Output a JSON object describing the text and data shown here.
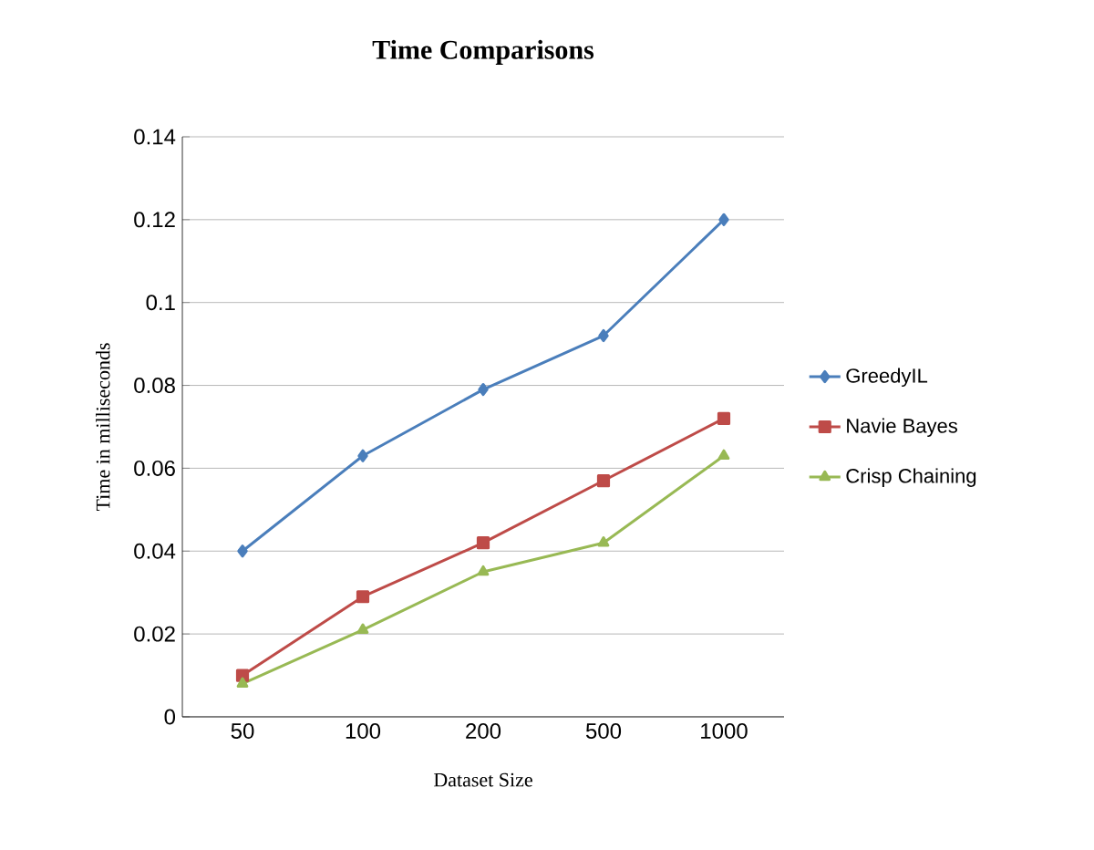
{
  "chart_data": {
    "type": "line",
    "title": "Time Comparisons",
    "xlabel": "Dataset Size",
    "ylabel": "Time  in milliseconds",
    "categories": [
      "50",
      "100",
      "200",
      "500",
      "1000"
    ],
    "series": [
      {
        "name": "GreedyIL",
        "color": "#4a7ebb",
        "marker": "diamond",
        "values": [
          0.04,
          0.063,
          0.079,
          0.092,
          0.12
        ]
      },
      {
        "name": "Navie Bayes",
        "color": "#be4b48",
        "marker": "square",
        "values": [
          0.01,
          0.029,
          0.042,
          0.057,
          0.072
        ]
      },
      {
        "name": "Crisp Chaining",
        "color": "#98b954",
        "marker": "triangle",
        "values": [
          0.008,
          0.021,
          0.035,
          0.042,
          0.063
        ]
      }
    ],
    "ylim": [
      0,
      0.14
    ],
    "yticks": [
      0,
      0.02,
      0.04,
      0.06,
      0.08,
      0.1,
      0.12,
      0.14
    ],
    "grid": "y",
    "legend": "right",
    "line_style": "solid"
  }
}
